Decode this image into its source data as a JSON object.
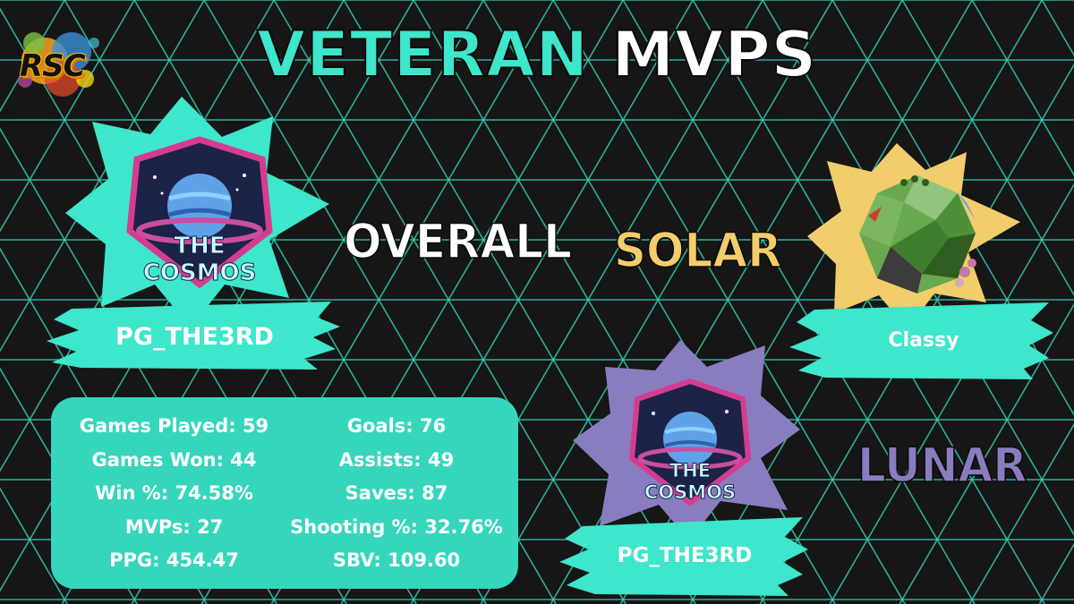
{
  "header": {
    "title_accent": "VETERAN",
    "title_rest": "MVPS",
    "logo_text": "RSC"
  },
  "colors": {
    "accent": "#3ee6cb",
    "gridline": "#35d6bc",
    "solar": "#f2cd6c",
    "lunar": "#8a7dbf",
    "stats_panel": "#35d6bc"
  },
  "overall": {
    "category_label": "OVERALL",
    "team_logo_text": "THE COSMOS",
    "player_name": "PG_THE3RD",
    "stats_left": [
      "Games Played: 59",
      "Games Won: 44",
      "Win %: 74.58%",
      "MVPs: 27",
      "PPG: 454.47"
    ],
    "stats_right": [
      "Goals: 76",
      "Assists: 49",
      "Saves: 87",
      "Shooting %: 32.76%",
      "SBV: 109.60"
    ]
  },
  "solar": {
    "category_label": "SOLAR",
    "player_name": "Classy",
    "team_logo_icon": "low-poly-planet-icon"
  },
  "lunar": {
    "category_label": "LUNAR",
    "team_logo_text": "THE COSMOS",
    "player_name": "PG_THE3RD"
  }
}
